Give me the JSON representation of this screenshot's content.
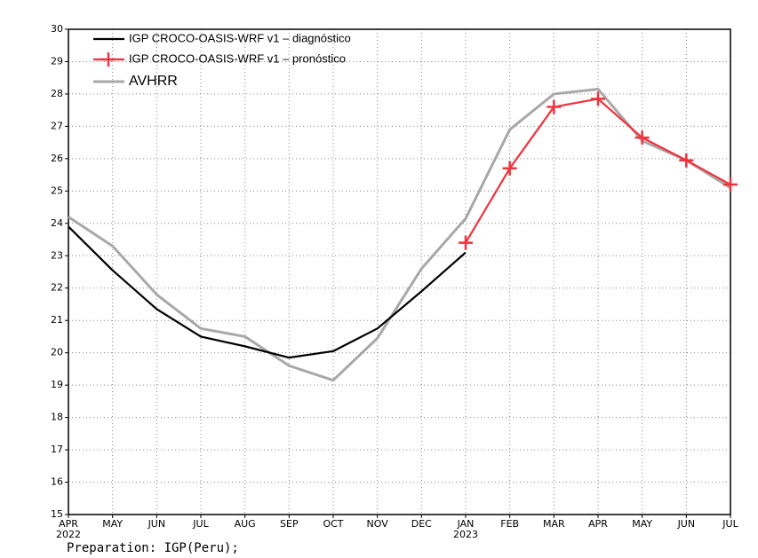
{
  "chart_data": {
    "type": "line",
    "categories": [
      "APR",
      "MAY",
      "JUN",
      "JUL",
      "AUG",
      "SEP",
      "OCT",
      "NOV",
      "DEC",
      "JAN",
      "FEB",
      "MAR",
      "APR",
      "MAY",
      "JUN",
      "JUL"
    ],
    "category_years": [
      "2022",
      null,
      null,
      null,
      null,
      null,
      null,
      null,
      null,
      "2023",
      null,
      null,
      null,
      null,
      null,
      null
    ],
    "series": [
      {
        "name": "IGP CROCO-OASIS-WRF v1 – diagnóstico",
        "color": "#000000",
        "values": [
          23.9,
          22.55,
          21.35,
          20.5,
          20.2,
          19.85,
          20.05,
          20.75,
          21.9,
          23.1,
          null,
          null,
          null,
          null,
          null,
          null
        ]
      },
      {
        "name": "IGP CROCO-OASIS-WRF v1 – pronóstico",
        "color": "#f0323c",
        "marker": "+",
        "values": [
          null,
          null,
          null,
          null,
          null,
          null,
          null,
          null,
          null,
          23.4,
          25.7,
          27.6,
          27.85,
          26.65,
          25.95,
          25.2
        ]
      },
      {
        "name": "AVHRR",
        "color": "#a8a8a8",
        "values": [
          24.2,
          23.3,
          21.8,
          20.75,
          20.5,
          19.6,
          19.15,
          20.45,
          22.6,
          24.15,
          26.9,
          28.0,
          28.15,
          26.55,
          25.95,
          25.1
        ]
      }
    ],
    "ylim": [
      15,
      30
    ],
    "yticks": [
      15,
      16,
      17,
      18,
      19,
      20,
      21,
      22,
      23,
      24,
      25,
      26,
      27,
      28,
      29,
      30
    ],
    "grid": true,
    "legend": "upper left",
    "footnote": "Preparation: IGP(Peru);"
  }
}
